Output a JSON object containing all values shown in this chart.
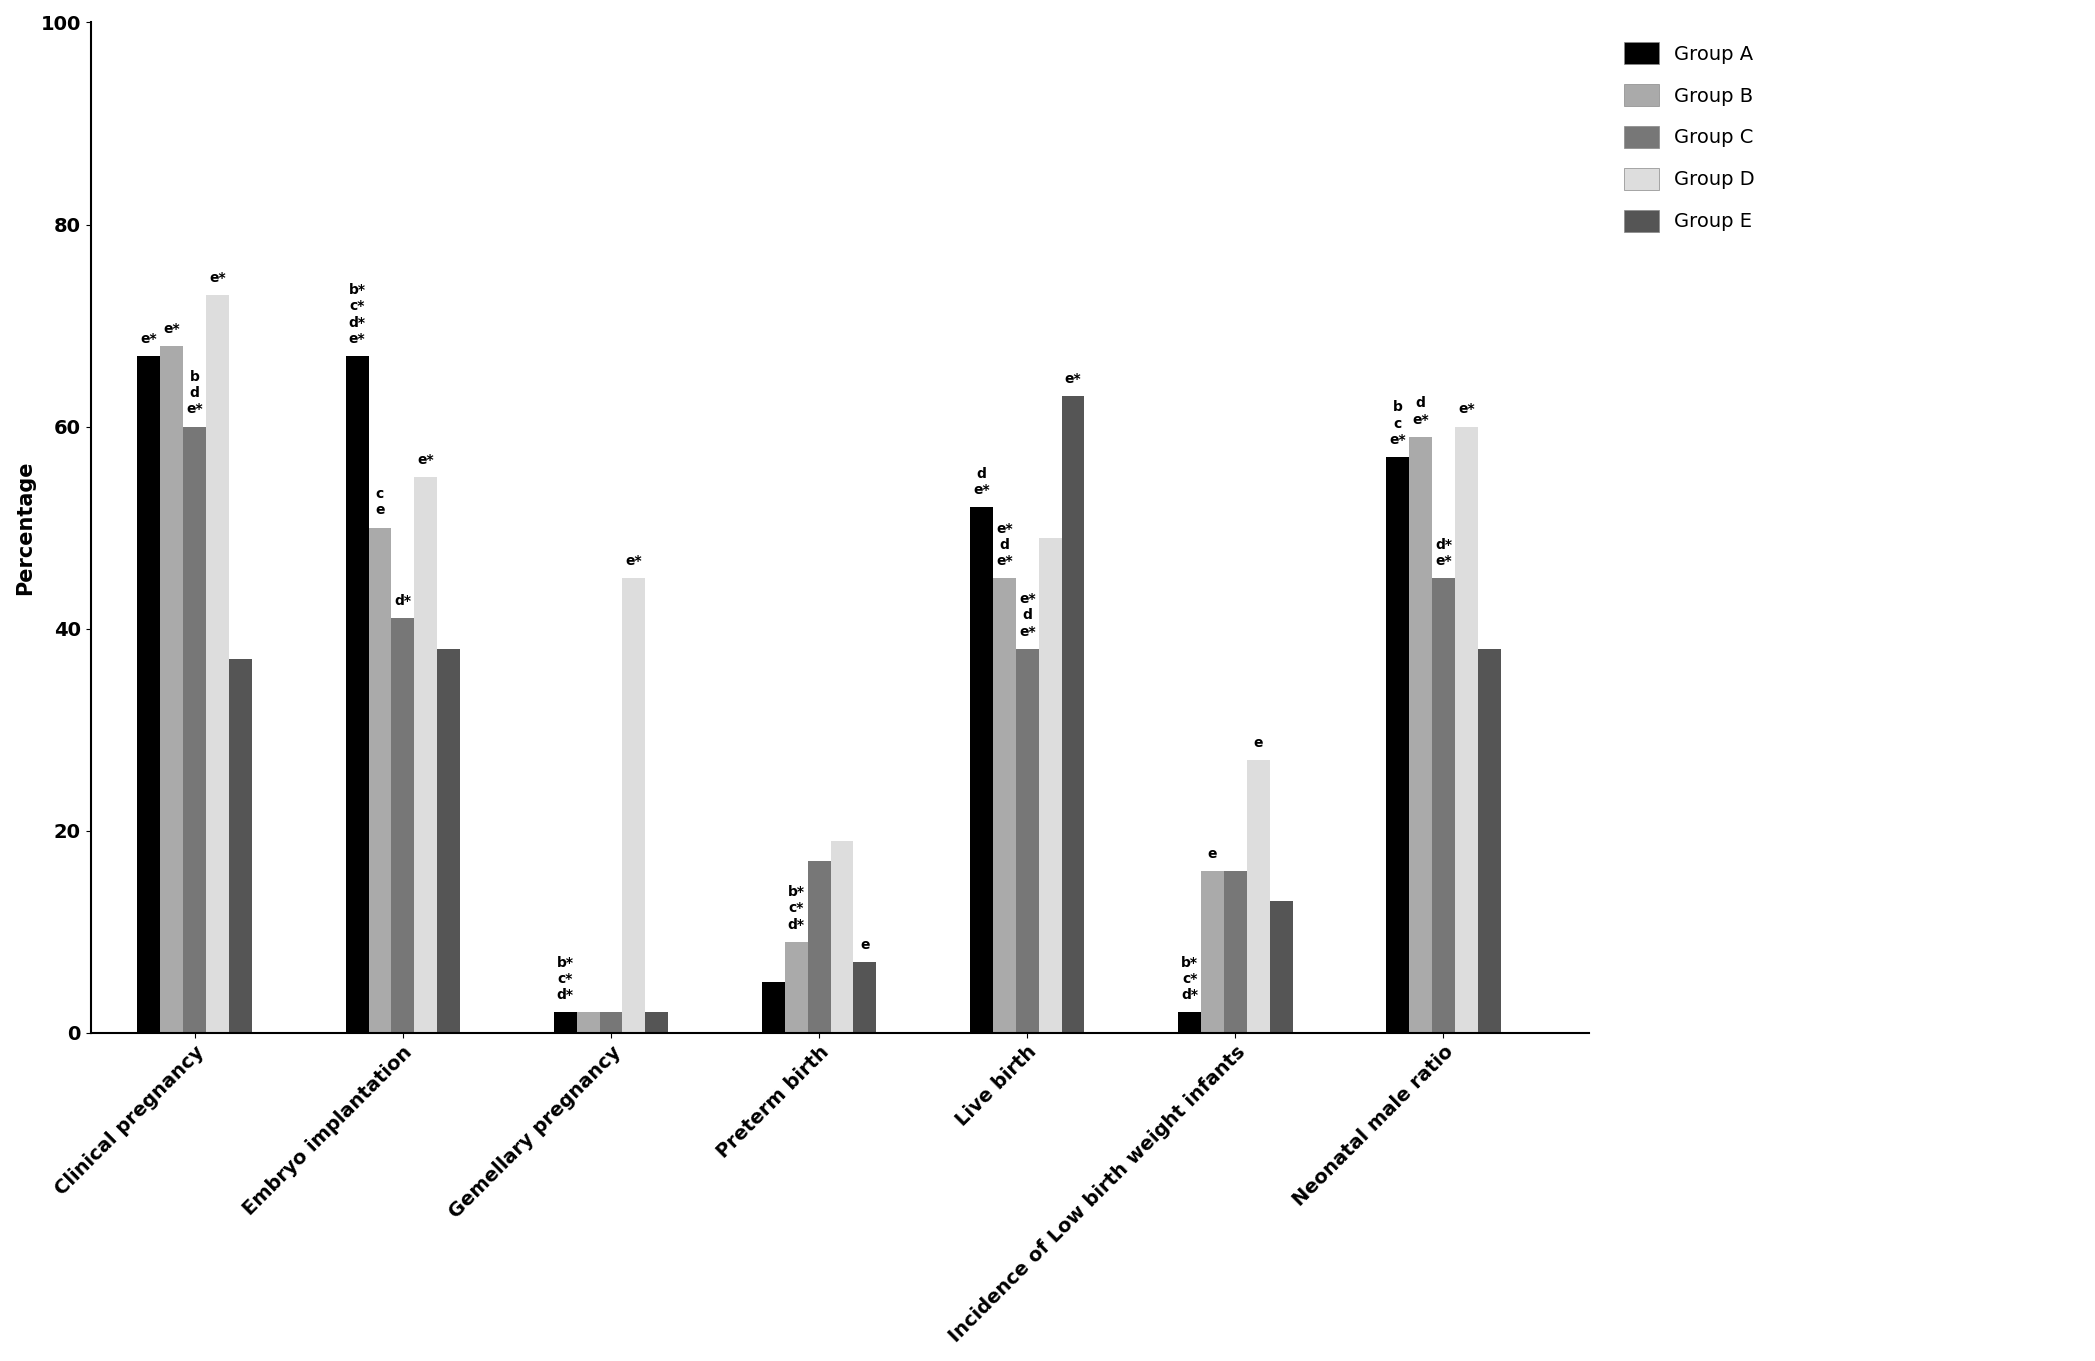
{
  "categories": [
    "Clinical pregnancy",
    "Embryo implantation",
    "Gemellary pregnancy",
    "Preterm birth",
    "Live birth",
    "Incidence of Low birth weight infants",
    "Neonatal male ratio"
  ],
  "groups": [
    "Group A",
    "Group B",
    "Group C",
    "Group D",
    "Group E"
  ],
  "colors": [
    "#000000",
    "#aaaaaa",
    "#777777",
    "#dddddd",
    "#555555"
  ],
  "values": {
    "Clinical pregnancy": [
      67,
      68,
      60,
      73,
      37
    ],
    "Embryo implantation": [
      67,
      50,
      41,
      55,
      38
    ],
    "Gemellary pregnancy": [
      2,
      2,
      2,
      45,
      2
    ],
    "Preterm birth": [
      5,
      9,
      17,
      19,
      7
    ],
    "Live birth": [
      52,
      45,
      38,
      49,
      63
    ],
    "Incidence of Low birth weight infants": [
      2,
      16,
      16,
      27,
      13
    ],
    "Neonatal male ratio": [
      57,
      59,
      45,
      60,
      38
    ]
  },
  "annotations": {
    "Clinical pregnancy": [
      {
        "bar": 0,
        "text": "e*"
      },
      {
        "bar": 1,
        "text": "e*"
      },
      {
        "bar": 2,
        "text": "b\nd\ne*"
      },
      {
        "bar": 3,
        "text": "e*"
      },
      {
        "bar": 4,
        "text": ""
      }
    ],
    "Embryo implantation": [
      {
        "bar": 0,
        "text": "b*\nc*\nd*\ne*"
      },
      {
        "bar": 1,
        "text": "c\ne"
      },
      {
        "bar": 2,
        "text": "d*"
      },
      {
        "bar": 3,
        "text": "e*"
      },
      {
        "bar": 4,
        "text": ""
      }
    ],
    "Gemellary pregnancy": [
      {
        "bar": 0,
        "text": "b*\nc*\nd*"
      },
      {
        "bar": 1,
        "text": ""
      },
      {
        "bar": 2,
        "text": ""
      },
      {
        "bar": 3,
        "text": "e*"
      },
      {
        "bar": 4,
        "text": ""
      }
    ],
    "Preterm birth": [
      {
        "bar": 0,
        "text": ""
      },
      {
        "bar": 1,
        "text": "b*\nc*\nd*"
      },
      {
        "bar": 2,
        "text": ""
      },
      {
        "bar": 3,
        "text": ""
      },
      {
        "bar": 4,
        "text": "e"
      }
    ],
    "Live birth": [
      {
        "bar": 0,
        "text": "d\ne*"
      },
      {
        "bar": 1,
        "text": "e*\nd\ne*"
      },
      {
        "bar": 2,
        "text": "e*\nd\ne*"
      },
      {
        "bar": 3,
        "text": ""
      },
      {
        "bar": 4,
        "text": "e*"
      }
    ],
    "Incidence of Low birth weight infants": [
      {
        "bar": 0,
        "text": "b*\nc*\nd*"
      },
      {
        "bar": 1,
        "text": "e"
      },
      {
        "bar": 2,
        "text": ""
      },
      {
        "bar": 3,
        "text": "e"
      },
      {
        "bar": 4,
        "text": ""
      }
    ],
    "Neonatal male ratio": [
      {
        "bar": 0,
        "text": "b\nc\ne*"
      },
      {
        "bar": 1,
        "text": "d\ne*"
      },
      {
        "bar": 2,
        "text": "d*\ne*"
      },
      {
        "bar": 3,
        "text": "e*"
      },
      {
        "bar": 4,
        "text": ""
      }
    ]
  },
  "ylabel": "Percentage",
  "ylim": [
    0,
    100
  ],
  "yticks": [
    0,
    20,
    40,
    60,
    80,
    100
  ],
  "bar_width": 0.11,
  "annotation_fontsize": 10,
  "axis_fontsize": 15,
  "tick_fontsize": 14,
  "legend_fontsize": 14
}
